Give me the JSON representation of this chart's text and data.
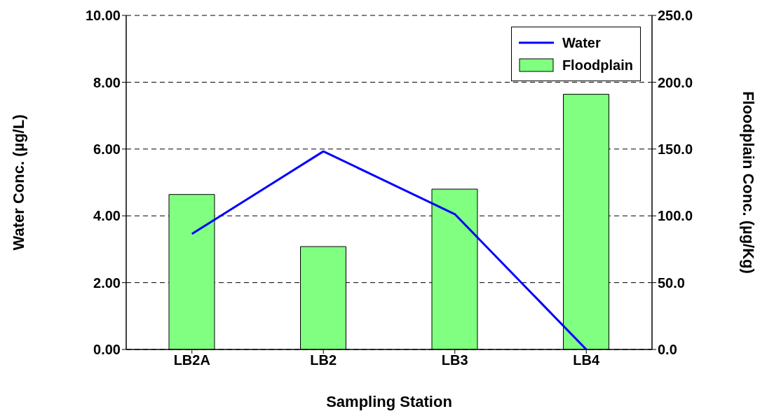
{
  "chart_data": {
    "type": "bar",
    "xlabel": "Sampling Station",
    "ylabel": "Water Conc. (µg/L)",
    "y2label": "Floodplain Conc. (µg/Kg)",
    "categories": [
      "LB2A",
      "LB2",
      "LB3",
      "LB4"
    ],
    "series": [
      {
        "name": "Water",
        "type": "line",
        "color": "#0000ff",
        "values": [
          3.46,
          5.93,
          4.05,
          0
        ]
      },
      {
        "name": "Floodplain",
        "axis": "y2",
        "color": "#80ff80",
        "values": [
          116,
          77,
          120,
          191
        ]
      }
    ],
    "ylim": [
      0,
      10
    ],
    "yticks": [
      {
        "value": 0,
        "label": "0.00"
      },
      {
        "value": 2,
        "label": "2.00"
      },
      {
        "value": 4,
        "label": "4.00"
      },
      {
        "value": 6,
        "label": "6.00"
      },
      {
        "value": 8,
        "label": "8.00"
      },
      {
        "value": 10,
        "label": "10.00"
      }
    ],
    "y2lim": [
      0,
      250
    ],
    "y2ticks": [
      {
        "value": 0,
        "label": "0.0"
      },
      {
        "value": 50,
        "label": "50.0"
      },
      {
        "value": 100,
        "label": "100.0"
      },
      {
        "value": 150,
        "label": "150.0"
      },
      {
        "value": 200,
        "label": "200.0"
      },
      {
        "value": 250,
        "label": "250.0"
      }
    ],
    "grid": "y",
    "legend": "top right",
    "marker": "none",
    "line_style": "solid"
  }
}
